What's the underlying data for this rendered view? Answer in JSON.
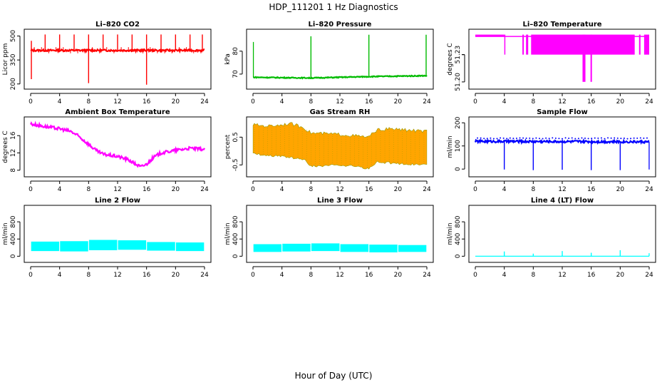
{
  "page": {
    "title": "HDP_111201  1 Hz Diagnostics",
    "xlabel": "Hour of Day (UTC)"
  },
  "chart_data": [
    {
      "id": "co2",
      "type": "line",
      "title": "Li–820 CO2",
      "ylabel": "Licor ppm",
      "color": "#ff0000",
      "xlim": [
        0,
        24
      ],
      "ylim": [
        190,
        520
      ],
      "xticks": [
        0,
        4,
        8,
        12,
        16,
        20,
        24
      ],
      "xtick_labels": [
        "0",
        "4",
        "8",
        "12",
        "16",
        "20",
        "24"
      ],
      "yticks": [
        200,
        350,
        500
      ],
      "ytick_labels": [
        "200",
        "350",
        "500"
      ],
      "baseline": [
        [
          0,
          410
        ],
        [
          24,
          410
        ]
      ],
      "noise": 6,
      "spikes_up": [
        [
          0.1,
          470
        ],
        [
          2,
          510
        ],
        [
          4,
          510
        ],
        [
          6,
          510
        ],
        [
          8,
          510
        ],
        [
          10,
          510
        ],
        [
          12,
          510
        ],
        [
          14,
          510
        ],
        [
          16,
          510
        ],
        [
          18,
          510
        ],
        [
          20,
          510
        ],
        [
          22,
          510
        ],
        [
          23.7,
          510
        ]
      ],
      "spikes_down": [
        [
          0.1,
          230
        ],
        [
          8,
          205
        ],
        [
          16,
          195
        ]
      ]
    },
    {
      "id": "pressure",
      "type": "line",
      "title": "Li–820 Pressure",
      "ylabel": "kPa",
      "color": "#00bb00",
      "xlim": [
        0,
        24
      ],
      "ylim": [
        65,
        88
      ],
      "xticks": [
        0,
        4,
        8,
        12,
        16,
        20,
        24
      ],
      "xtick_labels": [
        "0",
        "4",
        "8",
        "12",
        "16",
        "20",
        "24"
      ],
      "yticks": [
        70,
        80
      ],
      "ytick_labels": [
        "70",
        "80"
      ],
      "baseline": [
        [
          0,
          68.6
        ],
        [
          8,
          68.3
        ],
        [
          12,
          68.6
        ],
        [
          16,
          68.9
        ],
        [
          20,
          69.1
        ],
        [
          24,
          69.3
        ]
      ],
      "noise": 0.2,
      "spikes_up": [
        [
          0.05,
          84
        ],
        [
          8,
          86.5
        ],
        [
          16,
          87.2
        ],
        [
          23.9,
          87.2
        ]
      ],
      "spikes_down": []
    },
    {
      "id": "licor_temp",
      "type": "line",
      "title": "Li–820 Temperature",
      "ylabel": "degrees C",
      "color": "#ff00ff",
      "xlim": [
        0,
        24
      ],
      "ylim": [
        51.196,
        51.254
      ],
      "xticks": [
        0,
        4,
        8,
        12,
        16,
        20,
        24
      ],
      "xtick_labels": [
        "0",
        "4",
        "8",
        "12",
        "16",
        "20",
        "24"
      ],
      "yticks": [
        51.2,
        51.23
      ],
      "ytick_labels": [
        "51.20",
        "51.23"
      ],
      "ytick_mid": "51.23",
      "levels": [
        51.25,
        51.23,
        51.21
      ],
      "bands": [
        [
          0,
          4,
          51.25
        ],
        [
          4,
          4.05,
          51.23
        ],
        [
          6.5,
          6.7,
          51.23
        ],
        [
          7,
          7.3,
          51.23
        ],
        [
          7.7,
          22,
          51.23
        ],
        [
          22.6,
          22.8,
          51.23
        ],
        [
          23.3,
          24,
          51.23
        ],
        [
          14.8,
          15.2,
          51.2
        ],
        [
          15.9,
          16.1,
          51.2
        ]
      ]
    },
    {
      "id": "box_temp",
      "type": "line",
      "title": "Ambient Box Temperature",
      "ylabel": "degrees C",
      "color": "#ff00ff",
      "xlim": [
        0,
        24
      ],
      "ylim": [
        7.3,
        19.5
      ],
      "xticks": [
        0,
        4,
        8,
        12,
        16,
        20,
        24
      ],
      "xtick_labels": [
        "0",
        "4",
        "8",
        "12",
        "16",
        "20",
        "24"
      ],
      "yticks": [
        8,
        12,
        16
      ],
      "ytick_labels": [
        "8",
        "12",
        "16"
      ],
      "baseline": [
        [
          0,
          18.7
        ],
        [
          2,
          18.1
        ],
        [
          4,
          17.6
        ],
        [
          5.5,
          17.0
        ],
        [
          6.5,
          16.0
        ],
        [
          8,
          14.0
        ],
        [
          9,
          12.6
        ],
        [
          10,
          11.7
        ],
        [
          12,
          11.2
        ],
        [
          13.5,
          10.4
        ],
        [
          14.5,
          9.4
        ],
        [
          15.2,
          8.8
        ],
        [
          16,
          9.4
        ],
        [
          17,
          11.0
        ],
        [
          18,
          12.0
        ],
        [
          20,
          12.6
        ],
        [
          22,
          13.1
        ],
        [
          24,
          12.8
        ]
      ],
      "noise": 0.35
    },
    {
      "id": "rh",
      "type": "band",
      "title": "Gas Stream RH",
      "ylabel": "percent",
      "color": "#ffa500",
      "color2": "#999900",
      "xlim": [
        0,
        24
      ],
      "ylim": [
        -0.8,
        1.1
      ],
      "xticks": [
        0,
        4,
        8,
        12,
        16,
        20,
        24
      ],
      "xtick_labels": [
        "0",
        "4",
        "8",
        "12",
        "16",
        "20",
        "24"
      ],
      "yticks": [
        -0.5,
        0.5
      ],
      "ytick_labels": [
        "-0.5",
        "0.5"
      ],
      "upper": [
        [
          0,
          0.95
        ],
        [
          2,
          0.9
        ],
        [
          4,
          0.95
        ],
        [
          5,
          1.0
        ],
        [
          7,
          0.85
        ],
        [
          8,
          0.65
        ],
        [
          12,
          0.6
        ],
        [
          16,
          0.5
        ],
        [
          17,
          0.75
        ],
        [
          19,
          0.8
        ],
        [
          24,
          0.7
        ]
      ],
      "lower": [
        [
          0,
          -0.1
        ],
        [
          4,
          -0.2
        ],
        [
          7,
          -0.3
        ],
        [
          8,
          -0.55
        ],
        [
          12,
          -0.5
        ],
        [
          14,
          -0.55
        ],
        [
          16,
          -0.65
        ],
        [
          17,
          -0.4
        ],
        [
          24,
          -0.5
        ]
      ]
    },
    {
      "id": "sample_flow",
      "type": "line",
      "title": "Sample Flow",
      "ylabel": "ml/min",
      "color": "#0000ff",
      "xlim": [
        0,
        24
      ],
      "ylim": [
        -18,
        210
      ],
      "xticks": [
        0,
        4,
        8,
        12,
        16,
        20,
        24
      ],
      "xtick_labels": [
        "0",
        "4",
        "8",
        "12",
        "16",
        "20",
        "24"
      ],
      "yticks": [
        0,
        100,
        200
      ],
      "ytick_labels": [
        "0",
        "100",
        "200"
      ],
      "baseline": [
        [
          0,
          120
        ],
        [
          24,
          118
        ]
      ],
      "noise": 5,
      "dots_level": 133,
      "spikes_up": [],
      "spikes_down": [
        [
          4,
          -2
        ],
        [
          8,
          -5
        ],
        [
          12,
          -3
        ],
        [
          16,
          -5
        ],
        [
          20,
          -5
        ],
        [
          24,
          -2
        ]
      ]
    },
    {
      "id": "line2",
      "type": "band",
      "title": "Line 2 Flow",
      "ylabel": "ml/min",
      "color": "#00ffff",
      "xlim": [
        0,
        24
      ],
      "ylim": [
        -60,
        1100
      ],
      "xticks": [
        0,
        4,
        8,
        12,
        16,
        20,
        24
      ],
      "xtick_labels": [
        "0",
        "4",
        "8",
        "12",
        "16",
        "20",
        "24"
      ],
      "yticks": [
        0,
        400,
        800
      ],
      "ytick_labels": [
        "0",
        "400",
        "800"
      ],
      "segments": [
        [
          0,
          4,
          120,
          340
        ],
        [
          4,
          8,
          110,
          350
        ],
        [
          8,
          12,
          140,
          380
        ],
        [
          12,
          16,
          150,
          370
        ],
        [
          16,
          20,
          130,
          330
        ],
        [
          20,
          24,
          120,
          320
        ]
      ]
    },
    {
      "id": "line3",
      "type": "band",
      "title": "Line 3 Flow",
      "ylabel": "ml/min",
      "color": "#00ffff",
      "xlim": [
        0,
        24
      ],
      "ylim": [
        -60,
        1100
      ],
      "xticks": [
        0,
        4,
        8,
        12,
        16,
        20,
        24
      ],
      "xtick_labels": [
        "0",
        "4",
        "8",
        "12",
        "16",
        "20",
        "24"
      ],
      "yticks": [
        0,
        400,
        800
      ],
      "ytick_labels": [
        "0",
        "400",
        "800"
      ],
      "segments": [
        [
          0,
          4,
          100,
          280
        ],
        [
          4,
          8,
          110,
          290
        ],
        [
          8,
          12,
          120,
          300
        ],
        [
          12,
          16,
          100,
          280
        ],
        [
          16,
          20,
          90,
          270
        ],
        [
          20,
          24,
          100,
          260
        ]
      ]
    },
    {
      "id": "line4",
      "type": "line",
      "title": "Line 4 (LT) Flow",
      "ylabel": "ml/min",
      "color": "#00ffff",
      "xlim": [
        0,
        24
      ],
      "ylim": [
        -60,
        1100
      ],
      "xticks": [
        0,
        4,
        8,
        12,
        16,
        20,
        24
      ],
      "xtick_labels": [
        "0",
        "4",
        "8",
        "12",
        "16",
        "20",
        "24"
      ],
      "yticks": [
        0,
        400,
        800
      ],
      "ytick_labels": [
        "0",
        "400",
        "800"
      ],
      "baseline": [
        [
          0,
          0
        ],
        [
          24,
          0
        ]
      ],
      "noise": 0,
      "spikes_up": [
        [
          4,
          110
        ],
        [
          8,
          60
        ],
        [
          12,
          120
        ],
        [
          16,
          80
        ],
        [
          20,
          140
        ],
        [
          24,
          70
        ]
      ],
      "spikes_down": []
    }
  ]
}
